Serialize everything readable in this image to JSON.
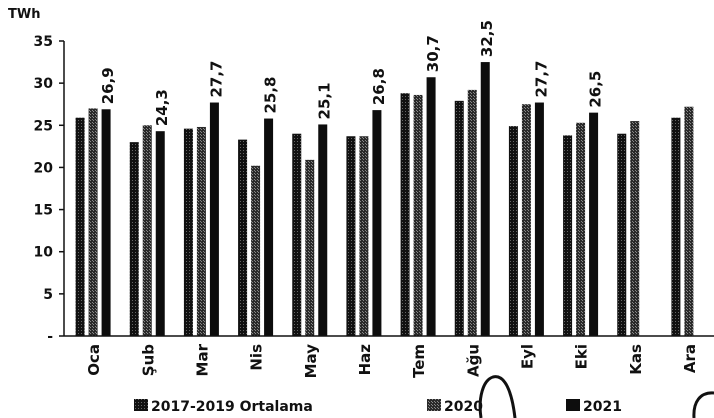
{
  "chart_data": {
    "type": "bar",
    "title": "",
    "ylabel": "TWh",
    "xlabel": "",
    "ylim": [
      0,
      35
    ],
    "yticks": [
      "35",
      "30",
      "25",
      "20",
      "15",
      "10",
      "5",
      "-"
    ],
    "categories": [
      "Oca",
      "Şub",
      "Mar",
      "Nis",
      "May",
      "Haz",
      "Tem",
      "Ağu",
      "Eyl",
      "Eki",
      "Kas",
      "Ara"
    ],
    "series": [
      {
        "name": "2017-2019 Ortalama",
        "values": [
          25.9,
          23.0,
          24.6,
          23.3,
          24.0,
          23.7,
          28.8,
          27.9,
          24.9,
          23.8,
          24.0,
          25.9
        ]
      },
      {
        "name": "2020",
        "values": [
          27.0,
          25.0,
          24.8,
          20.2,
          20.9,
          23.7,
          28.6,
          29.2,
          27.5,
          25.3,
          25.5,
          27.2
        ]
      },
      {
        "name": "2021",
        "values": [
          26.9,
          24.3,
          27.7,
          25.8,
          25.1,
          26.8,
          30.7,
          32.5,
          27.7,
          26.5,
          null,
          null
        ]
      }
    ],
    "data_labels": [
      "26,9",
      "24,3",
      "27,7",
      "25,8",
      "25,1",
      "26,8",
      "30,7",
      "32,5",
      "27,7",
      "26,5",
      "",
      ""
    ],
    "grid": false,
    "legend_position": "bottom",
    "colors": {
      "bar": "#111111",
      "pattern_dot": "#555555",
      "text": "#111111"
    }
  }
}
